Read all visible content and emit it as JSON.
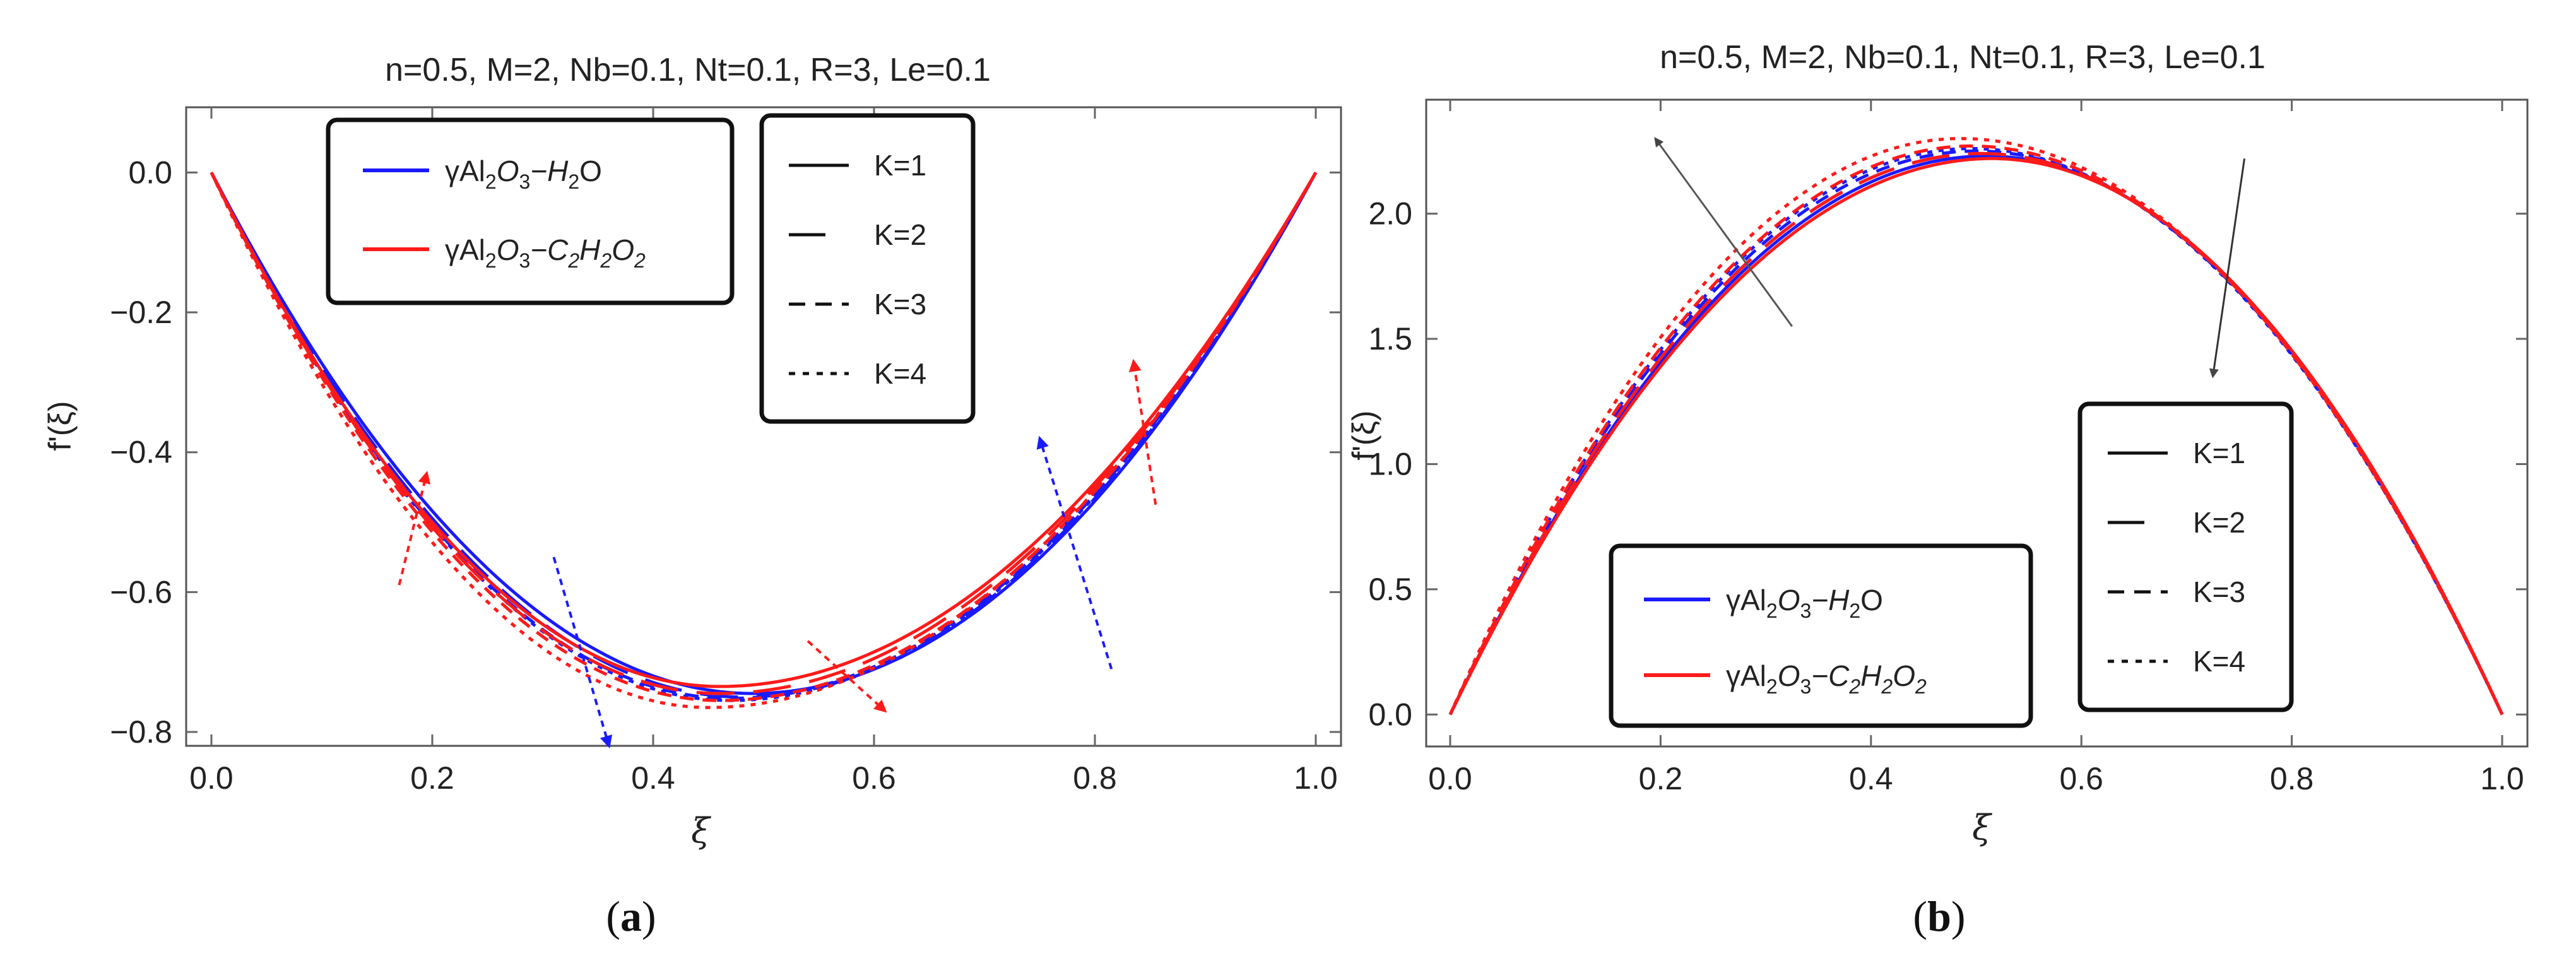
{
  "chart_data": [
    {
      "type": "line",
      "panel_label": {
        "open": "(",
        "letter": "a",
        "close": ")"
      },
      "title": "n=0.5, M=2, Nb=0.1, Nt=0.1, R=3, Le=0.1",
      "xlabel": "ξ",
      "ylabel": "f'(ξ)",
      "xlim": [
        0,
        1
      ],
      "ylim": [
        -0.8,
        0.05
      ],
      "xticks": [
        0.0,
        0.2,
        0.4,
        0.6,
        0.8,
        1.0
      ],
      "xtick_labels": [
        "0.0",
        "0.2",
        "0.4",
        "0.6",
        "0.8",
        "1.0"
      ],
      "yticks": [
        0.0,
        -0.2,
        -0.4,
        -0.6,
        -0.8
      ],
      "ytick_labels": [
        "0.0",
        "−0.2",
        "−0.4",
        "−0.6",
        "−0.8"
      ],
      "curve_shape": "valley",
      "fluid_legend": [
        {
          "label_prefix": "γAl",
          "sub1": "2",
          "mid": "O",
          "sub2": "3",
          "tail": "−H",
          "sub3": "2",
          "end": "O",
          "color": "#1a1aff"
        },
        {
          "label_prefix": "γAl",
          "sub1": "2",
          "mid": "O",
          "sub2": "3",
          "tail": "−C",
          "sub3": "2",
          "end2": "H",
          "sub4": "2",
          "end": "O",
          "sub5": "2",
          "color": "#ff1a1a"
        }
      ],
      "k_legend": [
        {
          "label": "K=1",
          "dash": "solid"
        },
        {
          "label": "K=2",
          "dash": "longdash"
        },
        {
          "label": "K=3",
          "dash": "dashed"
        },
        {
          "label": "K=4",
          "dash": "dotted"
        }
      ],
      "series": [
        {
          "name": "H2O K=1",
          "fluid": "H2O",
          "K": 1,
          "color": "#1a1aff",
          "dash": "solid",
          "min": -0.745,
          "xmin": 0.49
        },
        {
          "name": "H2O K=2",
          "fluid": "H2O",
          "K": 2,
          "color": "#1a1aff",
          "dash": "longdash",
          "min": -0.75,
          "xmin": 0.48
        },
        {
          "name": "H2O K=3",
          "fluid": "H2O",
          "K": 3,
          "color": "#1a1aff",
          "dash": "dashed",
          "min": -0.752,
          "xmin": 0.47
        },
        {
          "name": "H2O K=4",
          "fluid": "H2O",
          "K": 4,
          "color": "#1a1aff",
          "dash": "dotted",
          "min": -0.755,
          "xmin": 0.47
        },
        {
          "name": "C2H2O2 K=1",
          "fluid": "C2H2O2",
          "K": 1,
          "color": "#ff1a1a",
          "dash": "solid",
          "min": -0.735,
          "xmin": 0.46
        },
        {
          "name": "C2H2O2 K=2",
          "fluid": "C2H2O2",
          "K": 2,
          "color": "#ff1a1a",
          "dash": "longdash",
          "min": -0.745,
          "xmin": 0.46
        },
        {
          "name": "C2H2O2 K=3",
          "fluid": "C2H2O2",
          "K": 3,
          "color": "#ff1a1a",
          "dash": "dashed",
          "min": -0.755,
          "xmin": 0.46
        },
        {
          "name": "C2H2O2 K=4",
          "fluid": "C2H2O2",
          "K": 4,
          "color": "#ff1a1a",
          "dash": "dotted",
          "min": -0.765,
          "xmin": 0.45
        }
      ],
      "annotations": [
        {
          "kind": "arrow",
          "color": "#ff1a1a",
          "from": [
            0.17,
            -0.59
          ],
          "to": [
            0.195,
            -0.43
          ]
        },
        {
          "kind": "arrow",
          "color": "#1a1aff",
          "from": [
            0.31,
            -0.55
          ],
          "to": [
            0.36,
            -0.82
          ]
        },
        {
          "kind": "arrow",
          "color": "#ff1a1a",
          "from": [
            0.54,
            -0.67
          ],
          "to": [
            0.61,
            -0.77
          ]
        },
        {
          "kind": "arrow",
          "color": "#1a1aff",
          "from": [
            0.815,
            -0.71
          ],
          "to": [
            0.75,
            -0.38
          ]
        },
        {
          "kind": "arrow",
          "color": "#ff1a1a",
          "from": [
            0.855,
            -0.475
          ],
          "to": [
            0.835,
            -0.27
          ]
        }
      ]
    },
    {
      "type": "line",
      "panel_label": {
        "open": "(",
        "letter": "b",
        "close": ")"
      },
      "title": "n=0.5, M=2, Nb=0.1, Nt=0.1, R=3, Le=0.1",
      "xlabel": "ξ",
      "ylabel": "f'(ξ)",
      "xlim": [
        0,
        1
      ],
      "ylim": [
        -0.12,
        2.45
      ],
      "xticks": [
        0.0,
        0.2,
        0.4,
        0.6,
        0.8,
        1.0
      ],
      "xtick_labels": [
        "0.0",
        "0.2",
        "0.4",
        "0.6",
        "0.8",
        "1.0"
      ],
      "yticks": [
        0.0,
        0.5,
        1.0,
        1.5,
        2.0
      ],
      "ytick_labels": [
        "0.0",
        "0.5",
        "1.0",
        "1.5",
        "2.0"
      ],
      "curve_shape": "hill",
      "fluid_legend": [
        {
          "label_prefix": "γAl",
          "sub1": "2",
          "mid": "O",
          "sub2": "3",
          "tail": "−H",
          "sub3": "2",
          "end": "O",
          "color": "#1a1aff"
        },
        {
          "label_prefix": "γAl",
          "sub1": "2",
          "mid": "O",
          "sub2": "3",
          "tail": "−C",
          "sub3": "2",
          "end2": "H",
          "sub4": "2",
          "end": "O",
          "sub5": "2",
          "color": "#ff1a1a"
        }
      ],
      "k_legend": [
        {
          "label": "K=1",
          "dash": "solid"
        },
        {
          "label": "K=2",
          "dash": "longdash"
        },
        {
          "label": "K=3",
          "dash": "dashed"
        },
        {
          "label": "K=4",
          "dash": "dotted"
        }
      ],
      "series": [
        {
          "name": "H2O K=1",
          "fluid": "H2O",
          "K": 1,
          "color": "#1a1aff",
          "dash": "solid",
          "peak": 2.23,
          "xpeak": 0.51
        },
        {
          "name": "H2O K=2",
          "fluid": "H2O",
          "K": 2,
          "color": "#1a1aff",
          "dash": "longdash",
          "peak": 2.24,
          "xpeak": 0.505
        },
        {
          "name": "H2O K=3",
          "fluid": "H2O",
          "K": 3,
          "color": "#1a1aff",
          "dash": "dashed",
          "peak": 2.25,
          "xpeak": 0.5
        },
        {
          "name": "H2O K=4",
          "fluid": "H2O",
          "K": 4,
          "color": "#1a1aff",
          "dash": "dotted",
          "peak": 2.26,
          "xpeak": 0.495
        },
        {
          "name": "C2H2O2 K=1",
          "fluid": "C2H2O2",
          "K": 1,
          "color": "#ff1a1a",
          "dash": "solid",
          "peak": 2.22,
          "xpeak": 0.515
        },
        {
          "name": "C2H2O2 K=2",
          "fluid": "C2H2O2",
          "K": 2,
          "color": "#ff1a1a",
          "dash": "longdash",
          "peak": 2.24,
          "xpeak": 0.505
        },
        {
          "name": "C2H2O2 K=3",
          "fluid": "C2H2O2",
          "K": 3,
          "color": "#ff1a1a",
          "dash": "dashed",
          "peak": 2.27,
          "xpeak": 0.495
        },
        {
          "name": "C2H2O2 K=4",
          "fluid": "C2H2O2",
          "K": 4,
          "color": "#ff1a1a",
          "dash": "dotted",
          "peak": 2.3,
          "xpeak": 0.485
        }
      ],
      "annotations": [
        {
          "kind": "arrow",
          "color": "#555555",
          "from": [
            0.325,
            1.55
          ],
          "to": [
            0.195,
            2.3
          ]
        },
        {
          "kind": "arrow",
          "color": "#333333",
          "from": [
            0.755,
            2.22
          ],
          "to": [
            0.725,
            1.35
          ]
        }
      ]
    }
  ]
}
